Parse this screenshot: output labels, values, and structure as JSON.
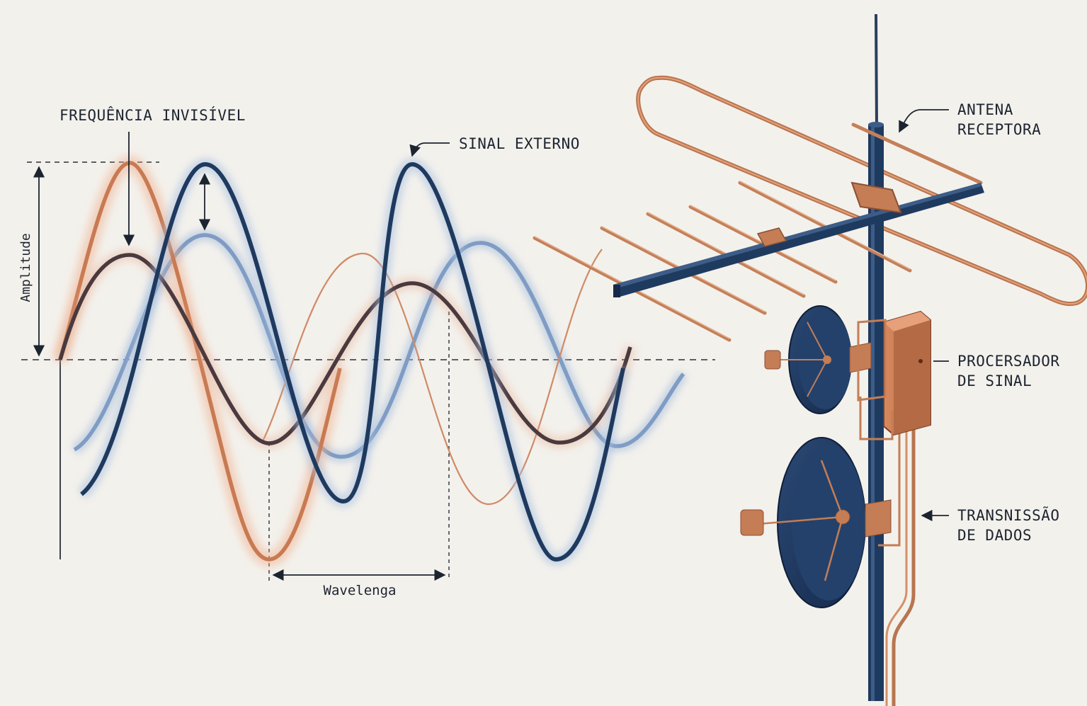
{
  "labels": {
    "invisible_frequency": "FREQUÊNCIA INVISÍVEL",
    "external_signal": "SINAL EXTERNO",
    "amplitude": "Amplitude",
    "wavelength": "Wavelenga",
    "antenna_line1": "ANTENA",
    "antenna_line2": "RECEPTORA",
    "processor_line1": "PROCERSADOR",
    "processor_line2": "DE SINAL",
    "transmission_line1": "TRANSNISSÃO",
    "transmission_line2": "DE DADOS"
  },
  "colors": {
    "background": "#f3f1ec",
    "navy": "#1f3a5f",
    "light_blue": "#7f9cc4",
    "copper": "#c87a52",
    "dark_brown": "#4a3a3f",
    "ink": "#1c2430"
  }
}
